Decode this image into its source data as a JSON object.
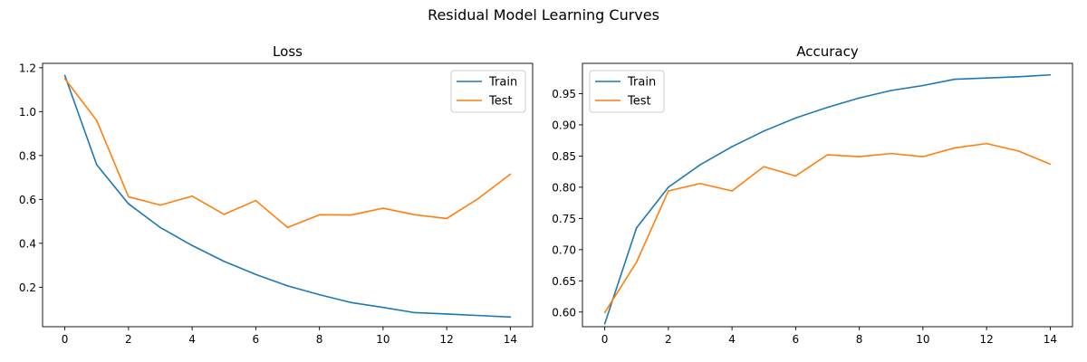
{
  "figure": {
    "suptitle": "Residual Model Learning Curves"
  },
  "colors": {
    "train": "#1f77b4",
    "test": "#ff7f0e",
    "axis": "#000000"
  },
  "chart_data": [
    {
      "type": "line",
      "title": "Loss",
      "xlabel": "",
      "ylabel": "",
      "x": [
        0,
        1,
        2,
        3,
        4,
        5,
        6,
        7,
        8,
        9,
        10,
        11,
        12,
        13,
        14
      ],
      "xlim": [
        -0.7,
        14.7
      ],
      "ylim": [
        0.02,
        1.22
      ],
      "xticks": [
        0,
        2,
        4,
        6,
        8,
        10,
        12,
        14
      ],
      "yticks": [
        0.2,
        0.4,
        0.6,
        0.8,
        1.0,
        1.2
      ],
      "ytick_labels": [
        "0.2",
        "0.4",
        "0.6",
        "0.8",
        "1.0",
        "1.2"
      ],
      "grid": false,
      "legend": "upper right",
      "series": [
        {
          "name": "Train",
          "color": "#1f77b4",
          "values": [
            1.165,
            0.758,
            0.58,
            0.472,
            0.39,
            0.318,
            0.258,
            0.206,
            0.166,
            0.13,
            0.108,
            0.084,
            0.078,
            0.071,
            0.064
          ]
        },
        {
          "name": "Test",
          "color": "#ff7f0e",
          "values": [
            1.15,
            0.96,
            0.612,
            0.574,
            0.615,
            0.532,
            0.595,
            0.472,
            0.53,
            0.529,
            0.56,
            0.53,
            0.513,
            0.605,
            0.715
          ]
        }
      ]
    },
    {
      "type": "line",
      "title": "Accuracy",
      "xlabel": "",
      "ylabel": "",
      "x": [
        0,
        1,
        2,
        3,
        4,
        5,
        6,
        7,
        8,
        9,
        10,
        11,
        12,
        13,
        14
      ],
      "xlim": [
        -0.7,
        14.7
      ],
      "ylim": [
        0.5765,
        0.9985
      ],
      "xticks": [
        0,
        2,
        4,
        6,
        8,
        10,
        12,
        14
      ],
      "yticks": [
        0.6,
        0.65,
        0.7,
        0.75,
        0.8,
        0.85,
        0.9,
        0.95
      ],
      "ytick_labels": [
        "0.60",
        "0.65",
        "0.70",
        "0.75",
        "0.80",
        "0.85",
        "0.90",
        "0.95"
      ],
      "grid": false,
      "legend": "upper left",
      "series": [
        {
          "name": "Train",
          "color": "#1f77b4",
          "values": [
            0.581,
            0.735,
            0.8,
            0.836,
            0.865,
            0.89,
            0.911,
            0.928,
            0.943,
            0.955,
            0.963,
            0.973,
            0.975,
            0.977,
            0.98
          ]
        },
        {
          "name": "Test",
          "color": "#ff7f0e",
          "values": [
            0.599,
            0.68,
            0.794,
            0.806,
            0.794,
            0.833,
            0.818,
            0.852,
            0.849,
            0.854,
            0.849,
            0.863,
            0.87,
            0.858,
            0.837
          ]
        }
      ]
    }
  ]
}
